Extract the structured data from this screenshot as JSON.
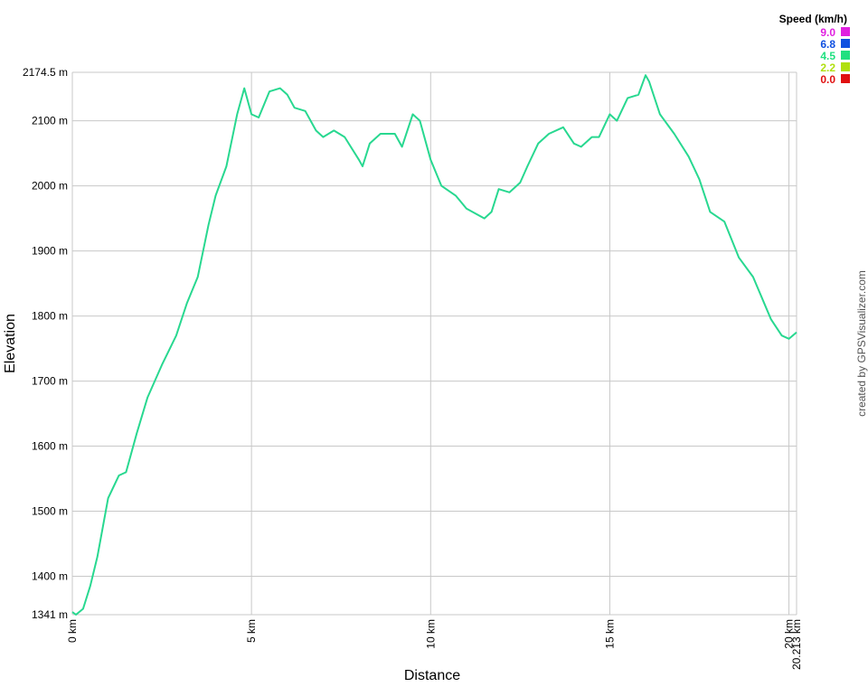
{
  "chart_data": {
    "type": "line",
    "x_label": "Distance",
    "y_label": "Elevation",
    "credit": "created by GPSVisualizer.com",
    "color_scale": {
      "title": "Speed (km/h)",
      "entries": [
        {
          "label": "9.0",
          "color": "#e020e0"
        },
        {
          "label": "6.8",
          "color": "#1050e0"
        },
        {
          "label": "4.5",
          "color": "#20e080"
        },
        {
          "label": "2.2",
          "color": "#b0e010"
        },
        {
          "label": "0.0",
          "color": "#e01010"
        }
      ]
    },
    "x": [
      0,
      0.1,
      0.3,
      0.5,
      0.7,
      1.0,
      1.3,
      1.5,
      1.8,
      2.1,
      2.5,
      2.9,
      3.2,
      3.5,
      3.8,
      4.0,
      4.3,
      4.6,
      4.8,
      5.0,
      5.2,
      5.5,
      5.8,
      6.0,
      6.2,
      6.5,
      6.8,
      7.0,
      7.3,
      7.6,
      8.0,
      8.1,
      8.3,
      8.6,
      9.0,
      9.2,
      9.5,
      9.7,
      10.0,
      10.3,
      10.7,
      11.0,
      11.5,
      11.7,
      11.9,
      12.2,
      12.5,
      12.7,
      13.0,
      13.3,
      13.7,
      14.0,
      14.2,
      14.5,
      14.7,
      15.0,
      15.2,
      15.5,
      15.8,
      16.0,
      16.1,
      16.4,
      16.8,
      17.2,
      17.5,
      17.8,
      18.2,
      18.6,
      19.0,
      19.5,
      19.8,
      20.0,
      20.213
    ],
    "series": [
      {
        "name": "Elevation",
        "color": "#28d890",
        "values": [
          1345,
          1341,
          1350,
          1385,
          1430,
          1520,
          1555,
          1560,
          1620,
          1675,
          1725,
          1770,
          1820,
          1860,
          1940,
          1985,
          2030,
          2110,
          2150,
          2110,
          2105,
          2145,
          2150,
          2140,
          2120,
          2115,
          2085,
          2075,
          2085,
          2075,
          2040,
          2030,
          2065,
          2080,
          2080,
          2060,
          2110,
          2100,
          2040,
          2000,
          1985,
          1965,
          1950,
          1960,
          1995,
          1990,
          2005,
          2030,
          2065,
          2080,
          2090,
          2065,
          2060,
          2075,
          2075,
          2110,
          2100,
          2135,
          2140,
          2170,
          2160,
          2110,
          2080,
          2045,
          2010,
          1960,
          1945,
          1890,
          1860,
          1795,
          1770,
          1765,
          1775
        ]
      }
    ],
    "xlim": [
      0,
      20.213
    ],
    "ylim": [
      1341,
      2174.5
    ],
    "xticks": [
      {
        "value": 0,
        "label": "0 km"
      },
      {
        "value": 5,
        "label": "5 km"
      },
      {
        "value": 10,
        "label": "10 km"
      },
      {
        "value": 15,
        "label": "15 km"
      },
      {
        "value": 20,
        "label": "20 km"
      },
      {
        "value": 20.213,
        "label": "20.213 km"
      }
    ],
    "yticks": [
      {
        "value": 1341,
        "label": "1341 m"
      },
      {
        "value": 1400,
        "label": "1400 m"
      },
      {
        "value": 1500,
        "label": "1500 m"
      },
      {
        "value": 1600,
        "label": "1600 m"
      },
      {
        "value": 1700,
        "label": "1700 m"
      },
      {
        "value": 1800,
        "label": "1800 m"
      },
      {
        "value": 1900,
        "label": "1900 m"
      },
      {
        "value": 2000,
        "label": "2000 m"
      },
      {
        "value": 2100,
        "label": "2100 m"
      },
      {
        "value": 2174.5,
        "label": "2174.5 m"
      }
    ],
    "grid": true
  }
}
